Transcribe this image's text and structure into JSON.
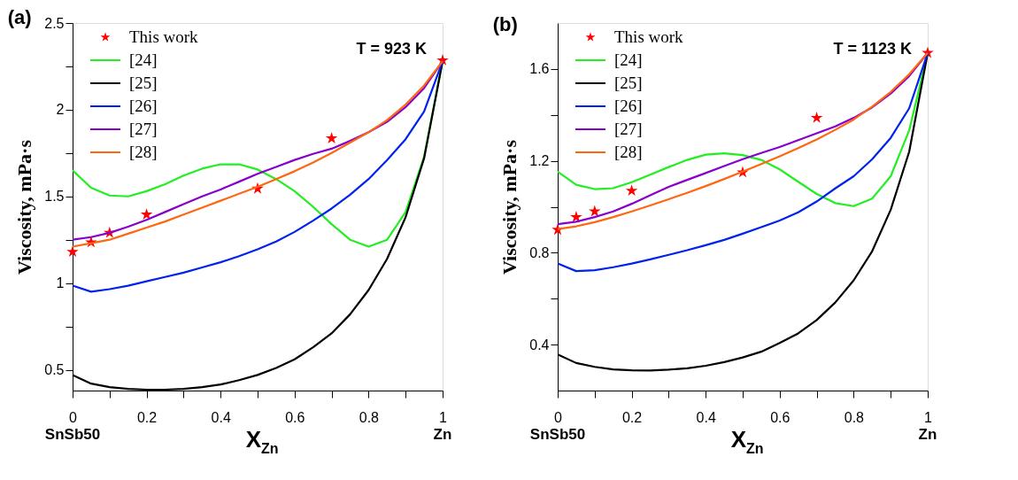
{
  "chart_data": [
    {
      "type": "line",
      "title": "(a)",
      "xlabel": "X$_{Zn}$",
      "ylabel": "Viscosity, mPa·s",
      "legend": "top left",
      "grid": false,
      "annotations": [
        "T = 923 K",
        "SnSb50",
        "Zn"
      ],
      "x": [
        0,
        0.05,
        0.1,
        0.15,
        0.2,
        0.25,
        0.3,
        0.35,
        0.4,
        0.45,
        0.5,
        0.55,
        0.6,
        0.65,
        0.7,
        0.75,
        0.8,
        0.85,
        0.9,
        0.95,
        1
      ],
      "xlim": [
        0,
        1
      ],
      "xticks": [
        0,
        {
          "value": 0.1,
          "label": null
        },
        0.2,
        {
          "value": 0.3,
          "label": null
        },
        0.4,
        {
          "value": 0.5,
          "label": null
        },
        0.6,
        {
          "value": 0.7,
          "label": null
        },
        0.8,
        {
          "value": 0.9,
          "label": null
        },
        1
      ],
      "ylim": [
        0.38,
        2.5
      ],
      "yticks": [
        0.5,
        {
          "value": 0.75,
          "label": null
        },
        1,
        {
          "value": 1.25,
          "label": null
        },
        1.5,
        {
          "value": 1.75,
          "label": null
        },
        2,
        {
          "value": 2.25,
          "label": null
        },
        2.5
      ],
      "series": [
        {
          "name": "This work",
          "type": "scatter",
          "marker": "star",
          "color": "#ff0000",
          "x": [
            0,
            0.05,
            0.1,
            0.2,
            0.5,
            0.7,
            1
          ],
          "values": [
            1.18,
            1.235,
            1.29,
            1.395,
            1.545,
            1.835,
            2.285
          ]
        },
        {
          "name": "[24]",
          "color": "#22ee22",
          "values": [
            1.65,
            1.55,
            1.505,
            1.5,
            1.53,
            1.57,
            1.62,
            1.66,
            1.685,
            1.685,
            1.655,
            1.6,
            1.53,
            1.44,
            1.34,
            1.25,
            1.21,
            1.25,
            1.41,
            1.73,
            2.28
          ]
        },
        {
          "name": "[25]",
          "color": "#000000",
          "values": [
            0.47,
            0.42,
            0.4,
            0.39,
            0.385,
            0.385,
            0.39,
            0.4,
            0.415,
            0.44,
            0.47,
            0.51,
            0.56,
            0.63,
            0.71,
            0.82,
            0.96,
            1.14,
            1.38,
            1.72,
            2.28
          ]
        },
        {
          "name": "[26]",
          "color": "#0022ee",
          "values": [
            0.985,
            0.95,
            0.965,
            0.985,
            1.01,
            1.035,
            1.06,
            1.09,
            1.12,
            1.155,
            1.195,
            1.24,
            1.295,
            1.36,
            1.43,
            1.51,
            1.6,
            1.71,
            1.83,
            1.99,
            2.28
          ]
        },
        {
          "name": "[27]",
          "color": "#8800cc",
          "values": [
            1.25,
            1.265,
            1.29,
            1.325,
            1.365,
            1.41,
            1.455,
            1.5,
            1.54,
            1.585,
            1.63,
            1.67,
            1.71,
            1.745,
            1.775,
            1.82,
            1.87,
            1.93,
            2.015,
            2.125,
            2.28
          ]
        },
        {
          "name": "[28]",
          "color": "#ff6611",
          "values": [
            1.21,
            1.23,
            1.25,
            1.285,
            1.32,
            1.355,
            1.395,
            1.435,
            1.475,
            1.515,
            1.555,
            1.6,
            1.645,
            1.695,
            1.75,
            1.81,
            1.87,
            1.94,
            2.03,
            2.14,
            2.28
          ]
        }
      ]
    },
    {
      "type": "line",
      "title": "(b)",
      "xlabel": "X$_{Zn}$",
      "ylabel": "Viscosity, mPa·s",
      "legend": "top left",
      "grid": false,
      "annotations": [
        "T = 1123 K",
        "SnSb50",
        "Zn"
      ],
      "x": [
        0,
        0.05,
        0.1,
        0.15,
        0.2,
        0.25,
        0.3,
        0.35,
        0.4,
        0.45,
        0.5,
        0.55,
        0.6,
        0.65,
        0.7,
        0.75,
        0.8,
        0.85,
        0.9,
        0.95,
        1
      ],
      "xlim": [
        0,
        1
      ],
      "xticks": [
        0,
        {
          "value": 0.1,
          "label": null
        },
        0.2,
        {
          "value": 0.3,
          "label": null
        },
        0.4,
        {
          "value": 0.5,
          "label": null
        },
        0.6,
        {
          "value": 0.7,
          "label": null
        },
        0.8,
        {
          "value": 0.9,
          "label": null
        },
        1
      ],
      "ylim": [
        0.2,
        1.8
      ],
      "yticks": [
        0.4,
        {
          "value": 0.6,
          "label": null
        },
        0.8,
        {
          "value": 1.0,
          "label": null
        },
        1.2,
        {
          "value": 1.4,
          "label": null
        },
        1.6
      ],
      "series": [
        {
          "name": "This work",
          "type": "scatter",
          "marker": "star",
          "color": "#ff0000",
          "x": [
            0,
            0.05,
            0.1,
            0.2,
            0.5,
            0.7,
            1
          ],
          "values": [
            0.9,
            0.955,
            0.98,
            1.07,
            1.15,
            1.387,
            1.67
          ]
        },
        {
          "name": "[24]",
          "color": "#22ee22",
          "values": [
            1.153,
            1.096,
            1.077,
            1.081,
            1.107,
            1.14,
            1.173,
            1.204,
            1.227,
            1.233,
            1.225,
            1.204,
            1.163,
            1.109,
            1.056,
            1.016,
            1.003,
            1.036,
            1.133,
            1.333,
            1.67
          ]
        },
        {
          "name": "[25]",
          "color": "#000000",
          "values": [
            0.357,
            0.32,
            0.303,
            0.292,
            0.288,
            0.287,
            0.291,
            0.297,
            0.308,
            0.324,
            0.344,
            0.369,
            0.407,
            0.449,
            0.507,
            0.583,
            0.68,
            0.807,
            0.987,
            1.24,
            1.67
          ]
        },
        {
          "name": "[26]",
          "color": "#0022ee",
          "values": [
            0.753,
            0.72,
            0.724,
            0.737,
            0.753,
            0.771,
            0.791,
            0.811,
            0.833,
            0.856,
            0.883,
            0.911,
            0.94,
            0.976,
            1.023,
            1.08,
            1.133,
            1.207,
            1.3,
            1.429,
            1.67
          ]
        },
        {
          "name": "[27]",
          "color": "#8800cc",
          "values": [
            0.924,
            0.935,
            0.955,
            0.98,
            1.013,
            1.05,
            1.087,
            1.117,
            1.147,
            1.177,
            1.207,
            1.234,
            1.26,
            1.29,
            1.32,
            1.35,
            1.387,
            1.433,
            1.493,
            1.569,
            1.67
          ]
        },
        {
          "name": "[28]",
          "color": "#ff6611",
          "values": [
            0.903,
            0.915,
            0.933,
            0.955,
            0.98,
            1.006,
            1.033,
            1.061,
            1.09,
            1.121,
            1.153,
            1.186,
            1.22,
            1.255,
            1.293,
            1.335,
            1.38,
            1.436,
            1.5,
            1.577,
            1.67
          ]
        }
      ]
    }
  ]
}
